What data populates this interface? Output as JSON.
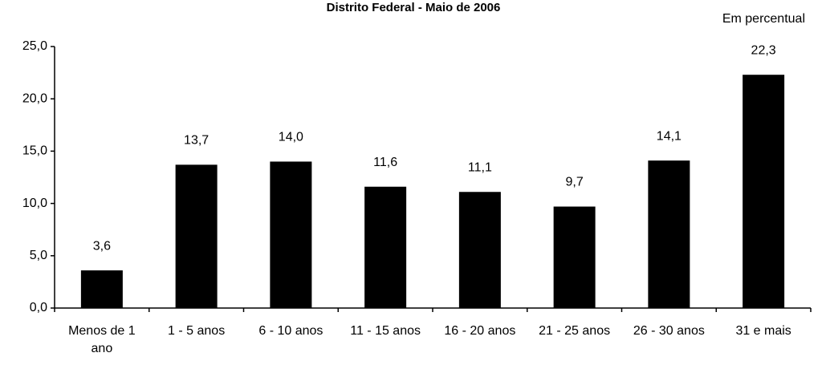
{
  "chart_data": {
    "type": "bar",
    "title": "Distrito Federal - Maio de 2006",
    "subtitle": "Em percentual",
    "categories": [
      "Menos de 1 ano",
      "1 - 5 anos",
      "6 - 10 anos",
      "11 - 15 anos",
      "16 - 20 anos",
      "21 - 25 anos",
      "26 - 30 anos",
      "31 e mais"
    ],
    "values": [
      3.6,
      13.7,
      14.0,
      11.6,
      11.1,
      9.7,
      14.1,
      22.3
    ],
    "value_labels": [
      "3,6",
      "13,7",
      "14,0",
      "11,6",
      "11,1",
      "9,7",
      "14,1",
      "22,3"
    ],
    "color": "#000000",
    "ylim": [
      0,
      25
    ],
    "yticks": [
      {
        "value": 0,
        "label": "0,0"
      },
      {
        "value": 5,
        "label": "5,0"
      },
      {
        "value": 10,
        "label": "10,0"
      },
      {
        "value": 15,
        "label": "15,0"
      },
      {
        "value": 20,
        "label": "20,0"
      },
      {
        "value": 25,
        "label": "25,0"
      }
    ],
    "grid": false
  }
}
